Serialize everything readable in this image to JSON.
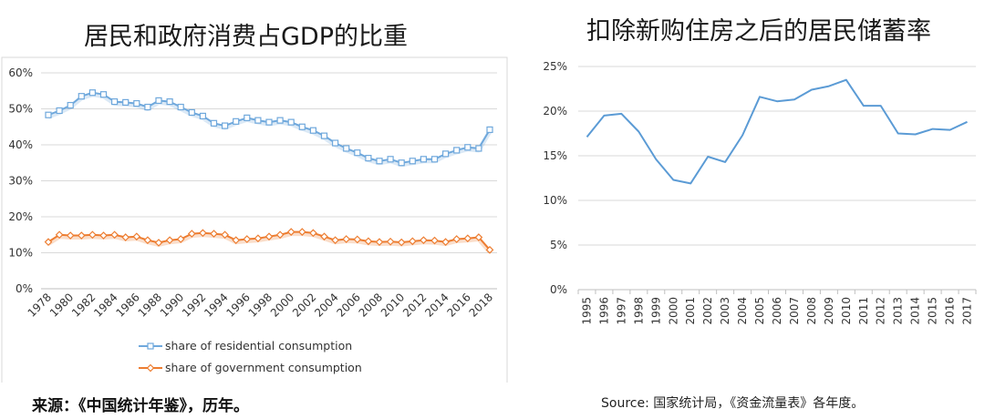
{
  "chart_data": [
    {
      "type": "line",
      "title": "居民和政府消费占GDP的比重",
      "source": "来源：《中国统计年鉴》，历年。",
      "x": [
        "1978",
        "1979",
        "1980",
        "1981",
        "1982",
        "1983",
        "1984",
        "1985",
        "1986",
        "1987",
        "1988",
        "1989",
        "1990",
        "1991",
        "1992",
        "1993",
        "1994",
        "1995",
        "1996",
        "1997",
        "1998",
        "1999",
        "2000",
        "2001",
        "2002",
        "2003",
        "2004",
        "2005",
        "2006",
        "2007",
        "2008",
        "2009",
        "2010",
        "2011",
        "2012",
        "2013",
        "2014",
        "2015",
        "2016",
        "2017",
        "2018"
      ],
      "x_tick_labels": [
        "1978",
        "1980",
        "1982",
        "1984",
        "1986",
        "1988",
        "1990",
        "1992",
        "1994",
        "1996",
        "1998",
        "2000",
        "2002",
        "2004",
        "2006",
        "2008",
        "2010",
        "2012",
        "2014",
        "2016",
        "2018"
      ],
      "ylim": [
        0,
        60
      ],
      "y_tick_labels": [
        "0%",
        "10%",
        "20%",
        "30%",
        "40%",
        "50%",
        "60%"
      ],
      "grid": true,
      "legend_position": "bottom",
      "series": [
        {
          "name": "share of residential consumption",
          "color": "#6fa8dc",
          "marker": "square",
          "values": [
            48.3,
            49.5,
            51.0,
            53.5,
            54.5,
            54.0,
            52.0,
            51.8,
            51.5,
            50.5,
            52.3,
            52.0,
            50.5,
            49.0,
            48.0,
            46.0,
            45.3,
            46.5,
            47.5,
            46.8,
            46.3,
            46.8,
            46.3,
            45.0,
            44.0,
            42.5,
            40.5,
            39.0,
            37.8,
            36.3,
            35.5,
            36.0,
            35.0,
            35.5,
            36.0,
            36.0,
            37.5,
            38.5,
            39.3,
            39.0,
            44.2
          ]
        },
        {
          "name": "share of government consumption",
          "color": "#ed7d31",
          "marker": "diamond",
          "values": [
            13.0,
            15.0,
            14.8,
            14.8,
            15.0,
            14.8,
            15.0,
            14.3,
            14.5,
            13.5,
            12.8,
            13.5,
            13.8,
            15.3,
            15.5,
            15.3,
            15.0,
            13.5,
            13.8,
            14.0,
            14.5,
            15.0,
            15.8,
            15.8,
            15.5,
            14.5,
            13.5,
            13.8,
            13.7,
            13.2,
            13.0,
            13.1,
            12.9,
            13.2,
            13.5,
            13.4,
            13.0,
            13.8,
            14.0,
            14.3,
            10.8
          ]
        }
      ]
    },
    {
      "type": "line",
      "title": "扣除新购住房之后的居民储蓄率",
      "source": "Source: 国家统计局，《资金流量表》各年度。",
      "x": [
        "1995",
        "1996",
        "1997",
        "1998",
        "1999",
        "2000",
        "2001",
        "2002",
        "2003",
        "2004",
        "2005",
        "2006",
        "2007",
        "2008",
        "2009",
        "2010",
        "2011",
        "2012",
        "2013",
        "2014",
        "2015",
        "2016",
        "2017"
      ],
      "ylim": [
        0,
        25
      ],
      "y_tick_labels": [
        "0%",
        "5%",
        "10%",
        "15%",
        "20%",
        "25%"
      ],
      "grid": true,
      "series": [
        {
          "name": "",
          "color": "#5b9bd5",
          "values": [
            17.1,
            19.5,
            19.7,
            17.7,
            14.6,
            12.3,
            11.9,
            14.9,
            14.3,
            17.3,
            21.6,
            21.1,
            21.3,
            22.4,
            22.8,
            23.5,
            20.6,
            20.6,
            17.5,
            17.4,
            18.0,
            17.9,
            18.8
          ]
        }
      ]
    }
  ]
}
